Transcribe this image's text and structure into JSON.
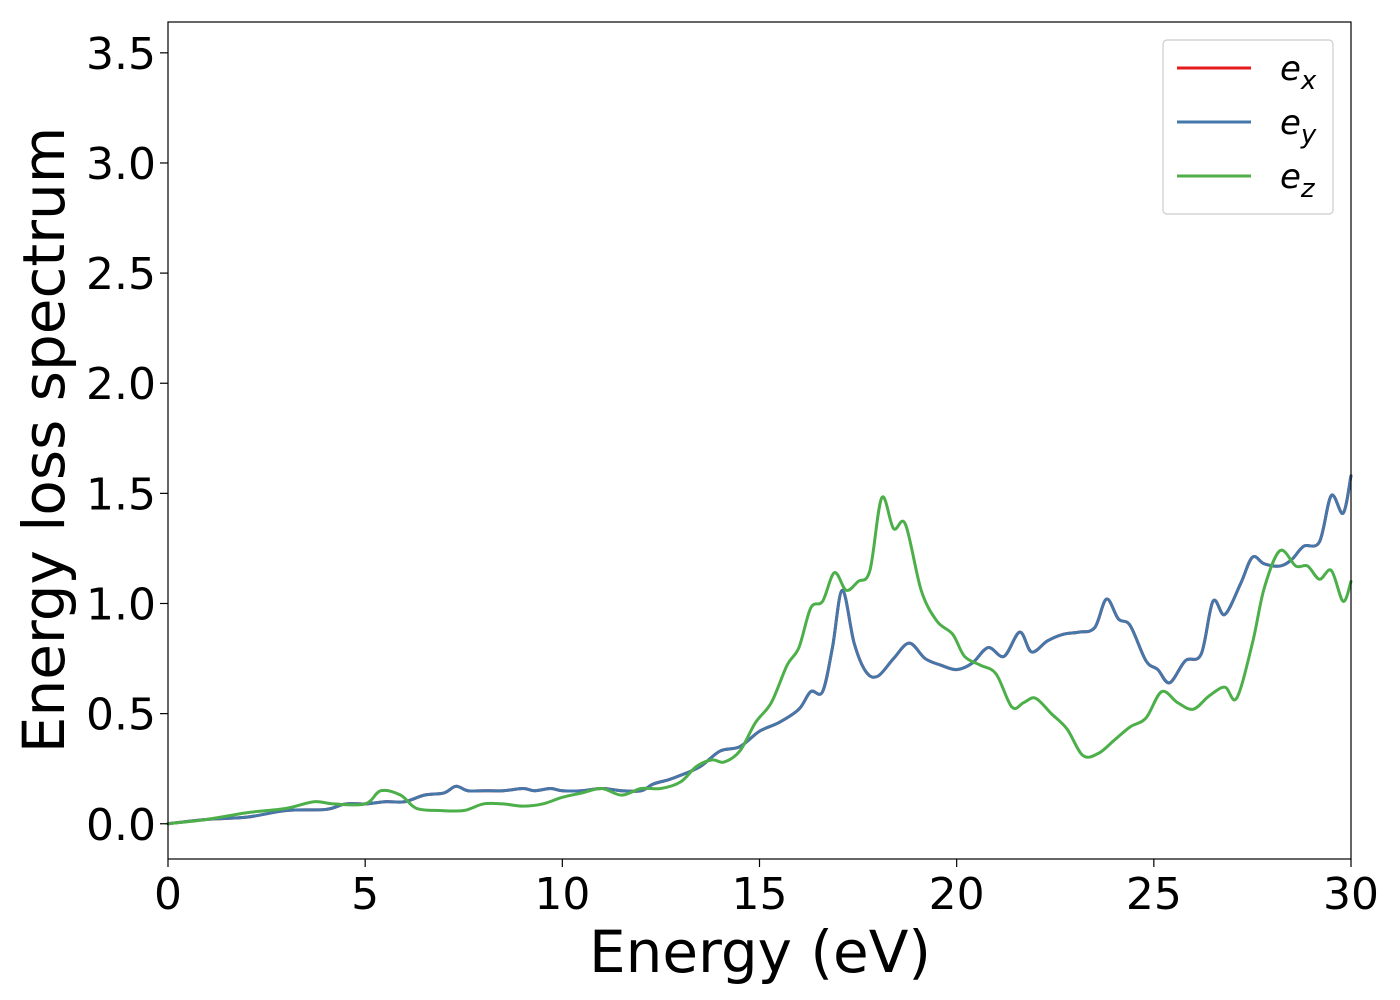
{
  "chart_data": {
    "type": "line",
    "title": "",
    "xlabel": "Energy (eV)",
    "ylabel": "Energy loss spectrum",
    "xlim": [
      0,
      30
    ],
    "ylim": [
      -0.16,
      3.64
    ],
    "xticks": [
      0,
      5,
      10,
      15,
      20,
      25,
      30
    ],
    "yticks": [
      0.0,
      0.5,
      1.0,
      1.5,
      2.0,
      2.5,
      3.0,
      3.5
    ],
    "xtick_labels": [
      "0",
      "5",
      "10",
      "15",
      "20",
      "25",
      "30"
    ],
    "ytick_labels": [
      "0.0",
      "0.5",
      "1.0",
      "1.5",
      "2.0",
      "2.5",
      "3.0",
      "3.5"
    ],
    "grid": false,
    "legend_position": "top-right",
    "series": [
      {
        "name": "e_x",
        "legend_base": "e",
        "legend_sub": "x",
        "color": "#e41a1c",
        "x": [
          0,
          1,
          2,
          3,
          4,
          4.5,
          5,
          5.5,
          6,
          6.5,
          7,
          7.3,
          7.6,
          8,
          8.5,
          9,
          9.3,
          9.7,
          10,
          10.5,
          11,
          11.5,
          12,
          12.3,
          12.7,
          13,
          13.5,
          14,
          14.5,
          15,
          15.5,
          16,
          16.3,
          16.6,
          16.85,
          17.1,
          17.4,
          17.7,
          18,
          18.4,
          18.8,
          19.2,
          19.6,
          20,
          20.4,
          20.8,
          21.2,
          21.6,
          21.9,
          22.3,
          22.7,
          23.1,
          23.5,
          23.8,
          24.1,
          24.4,
          24.8,
          25.1,
          25.4,
          25.8,
          26.2,
          26.5,
          26.8,
          27.2,
          27.5,
          27.8,
          28.2,
          28.5,
          28.8,
          29.2,
          29.5,
          29.8,
          30
        ],
        "values": [
          0.0,
          0.02,
          0.03,
          0.06,
          0.065,
          0.09,
          0.09,
          0.1,
          0.1,
          0.13,
          0.14,
          0.17,
          0.15,
          0.15,
          0.15,
          0.16,
          0.15,
          0.16,
          0.15,
          0.15,
          0.16,
          0.15,
          0.15,
          0.18,
          0.2,
          0.22,
          0.26,
          0.33,
          0.35,
          0.42,
          0.46,
          0.52,
          0.6,
          0.6,
          0.8,
          1.06,
          0.82,
          0.69,
          0.67,
          0.75,
          0.82,
          0.75,
          0.72,
          0.7,
          0.73,
          0.8,
          0.76,
          0.87,
          0.78,
          0.83,
          0.86,
          0.87,
          0.89,
          1.02,
          0.93,
          0.9,
          0.74,
          0.7,
          0.64,
          0.74,
          0.77,
          1.01,
          0.95,
          1.09,
          1.21,
          1.18,
          1.17,
          1.2,
          1.26,
          1.28,
          1.49,
          1.41,
          1.58
        ]
      },
      {
        "name": "e_y",
        "legend_base": "e",
        "legend_sub": "y",
        "color": "#4477aa",
        "x": [
          0,
          1,
          2,
          3,
          4,
          4.5,
          5,
          5.5,
          6,
          6.5,
          7,
          7.3,
          7.6,
          8,
          8.5,
          9,
          9.3,
          9.7,
          10,
          10.5,
          11,
          11.5,
          12,
          12.3,
          12.7,
          13,
          13.5,
          14,
          14.5,
          15,
          15.5,
          16,
          16.3,
          16.6,
          16.85,
          17.1,
          17.4,
          17.7,
          18,
          18.4,
          18.8,
          19.2,
          19.6,
          20,
          20.4,
          20.8,
          21.2,
          21.6,
          21.9,
          22.3,
          22.7,
          23.1,
          23.5,
          23.8,
          24.1,
          24.4,
          24.8,
          25.1,
          25.4,
          25.8,
          26.2,
          26.5,
          26.8,
          27.2,
          27.5,
          27.8,
          28.2,
          28.5,
          28.8,
          29.2,
          29.5,
          29.8,
          30
        ],
        "values": [
          0.0,
          0.02,
          0.03,
          0.06,
          0.065,
          0.09,
          0.09,
          0.1,
          0.1,
          0.13,
          0.14,
          0.17,
          0.15,
          0.15,
          0.15,
          0.16,
          0.15,
          0.16,
          0.15,
          0.15,
          0.16,
          0.15,
          0.15,
          0.18,
          0.2,
          0.22,
          0.26,
          0.33,
          0.35,
          0.42,
          0.46,
          0.52,
          0.6,
          0.6,
          0.8,
          1.06,
          0.82,
          0.69,
          0.67,
          0.75,
          0.82,
          0.75,
          0.72,
          0.7,
          0.73,
          0.8,
          0.76,
          0.87,
          0.78,
          0.83,
          0.86,
          0.87,
          0.89,
          1.02,
          0.93,
          0.9,
          0.74,
          0.7,
          0.64,
          0.74,
          0.77,
          1.01,
          0.95,
          1.09,
          1.21,
          1.18,
          1.17,
          1.2,
          1.26,
          1.28,
          1.49,
          1.41,
          1.58
        ]
      },
      {
        "name": "e_z",
        "legend_base": "e",
        "legend_sub": "z",
        "color": "#4daf4a",
        "x": [
          0,
          1,
          2,
          3,
          3.7,
          4.2,
          5,
          5.4,
          5.9,
          6.3,
          6.9,
          7.5,
          8,
          8.5,
          9,
          9.5,
          10,
          10.5,
          11,
          11.5,
          12,
          12.5,
          13,
          13.4,
          13.8,
          14.1,
          14.5,
          14.9,
          15.3,
          15.7,
          16,
          16.3,
          16.6,
          16.9,
          17.2,
          17.5,
          17.8,
          18.1,
          18.4,
          18.7,
          19.1,
          19.5,
          19.9,
          20.2,
          20.6,
          21,
          21.4,
          21.7,
          22,
          22.4,
          22.8,
          23.2,
          23.6,
          24,
          24.4,
          24.8,
          25.2,
          25.6,
          26,
          26.4,
          26.8,
          27.1,
          27.5,
          27.8,
          28.2,
          28.6,
          28.9,
          29.2,
          29.5,
          29.8,
          30
        ],
        "values": [
          0.0,
          0.02,
          0.05,
          0.07,
          0.1,
          0.09,
          0.09,
          0.15,
          0.13,
          0.07,
          0.06,
          0.06,
          0.09,
          0.09,
          0.08,
          0.09,
          0.12,
          0.14,
          0.16,
          0.13,
          0.16,
          0.16,
          0.19,
          0.26,
          0.29,
          0.28,
          0.33,
          0.46,
          0.55,
          0.72,
          0.8,
          0.98,
          1.01,
          1.14,
          1.06,
          1.1,
          1.15,
          1.48,
          1.34,
          1.36,
          1.06,
          0.92,
          0.86,
          0.76,
          0.72,
          0.68,
          0.53,
          0.55,
          0.57,
          0.5,
          0.43,
          0.31,
          0.32,
          0.38,
          0.44,
          0.48,
          0.6,
          0.55,
          0.52,
          0.58,
          0.62,
          0.57,
          0.82,
          1.07,
          1.24,
          1.17,
          1.17,
          1.11,
          1.15,
          1.01,
          1.1
        ]
      }
    ]
  }
}
